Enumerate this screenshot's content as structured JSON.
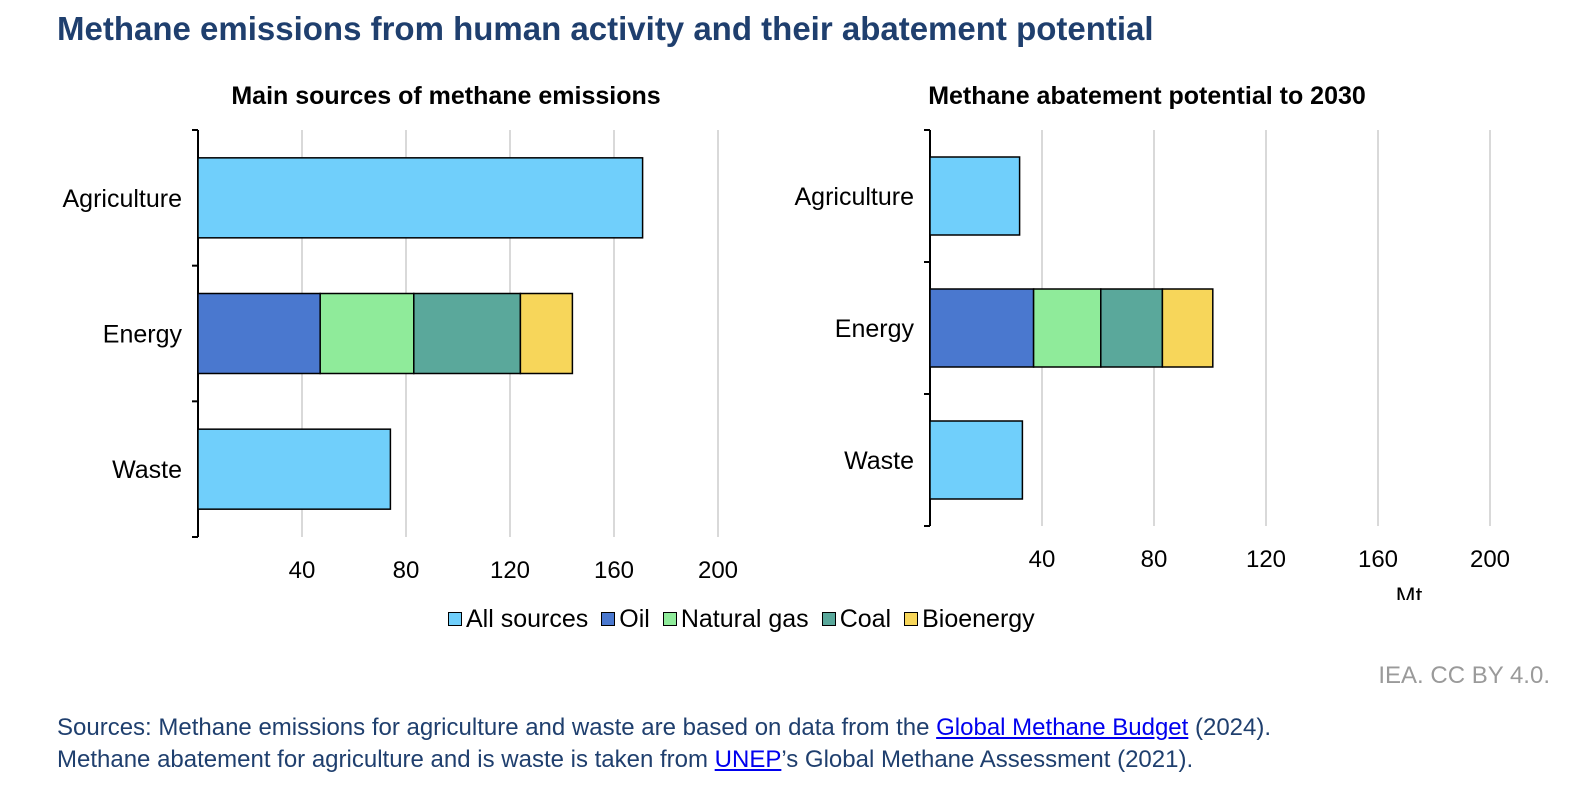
{
  "page": {
    "title": "Methane emissions from human activity and their abatement potential",
    "credit": "IEA. CC BY 4.0.",
    "sources": {
      "line1_pre": "Sources: Methane emissions for agriculture and waste are based on data from the ",
      "line1_link": "Global Methane Budget",
      "line1_post": " (2024).",
      "line2_pre": "Methane abatement for agriculture and is waste is taken from ",
      "line2_link": "UNEP",
      "line2_post": "’s Global Methane Assessment (2021)."
    }
  },
  "colors": {
    "All sources": "#70cffb",
    "Oil": "#4a78cf",
    "Natural gas": "#8feb9a",
    "Coal": "#5aa89b",
    "Bioenergy": "#f7d65a"
  },
  "legend": [
    "All sources",
    "Oil",
    "Natural gas",
    "Coal",
    "Bioenergy"
  ],
  "chart_data": [
    {
      "type": "bar",
      "orientation": "horizontal",
      "stacked": true,
      "title": "Main sources of methane emissions",
      "categories": [
        "Agriculture",
        "Energy",
        "Waste"
      ],
      "series": [
        {
          "name": "All sources",
          "values": [
            171,
            0,
            74
          ]
        },
        {
          "name": "Oil",
          "values": [
            0,
            47,
            0
          ]
        },
        {
          "name": "Natural gas",
          "values": [
            0,
            36,
            0
          ]
        },
        {
          "name": "Coal",
          "values": [
            0,
            41,
            0
          ]
        },
        {
          "name": "Bioenergy",
          "values": [
            0,
            20,
            0
          ]
        }
      ],
      "xlim": [
        0,
        200
      ],
      "xticks": [
        40,
        80,
        120,
        160,
        200
      ],
      "xlabel": "",
      "grid": true
    },
    {
      "type": "bar",
      "orientation": "horizontal",
      "stacked": true,
      "title": "Methane abatement potential to 2030",
      "categories": [
        "Agriculture",
        "Energy",
        "Waste"
      ],
      "series": [
        {
          "name": "All sources",
          "values": [
            32,
            0,
            33
          ]
        },
        {
          "name": "Oil",
          "values": [
            0,
            37,
            0
          ]
        },
        {
          "name": "Natural gas",
          "values": [
            0,
            24,
            0
          ]
        },
        {
          "name": "Coal",
          "values": [
            0,
            22,
            0
          ]
        },
        {
          "name": "Bioenergy",
          "values": [
            0,
            18,
            0
          ]
        }
      ],
      "xlim": [
        0,
        200
      ],
      "xticks": [
        40,
        80,
        120,
        160,
        200
      ],
      "xlabel": "Mt",
      "grid": true
    }
  ]
}
